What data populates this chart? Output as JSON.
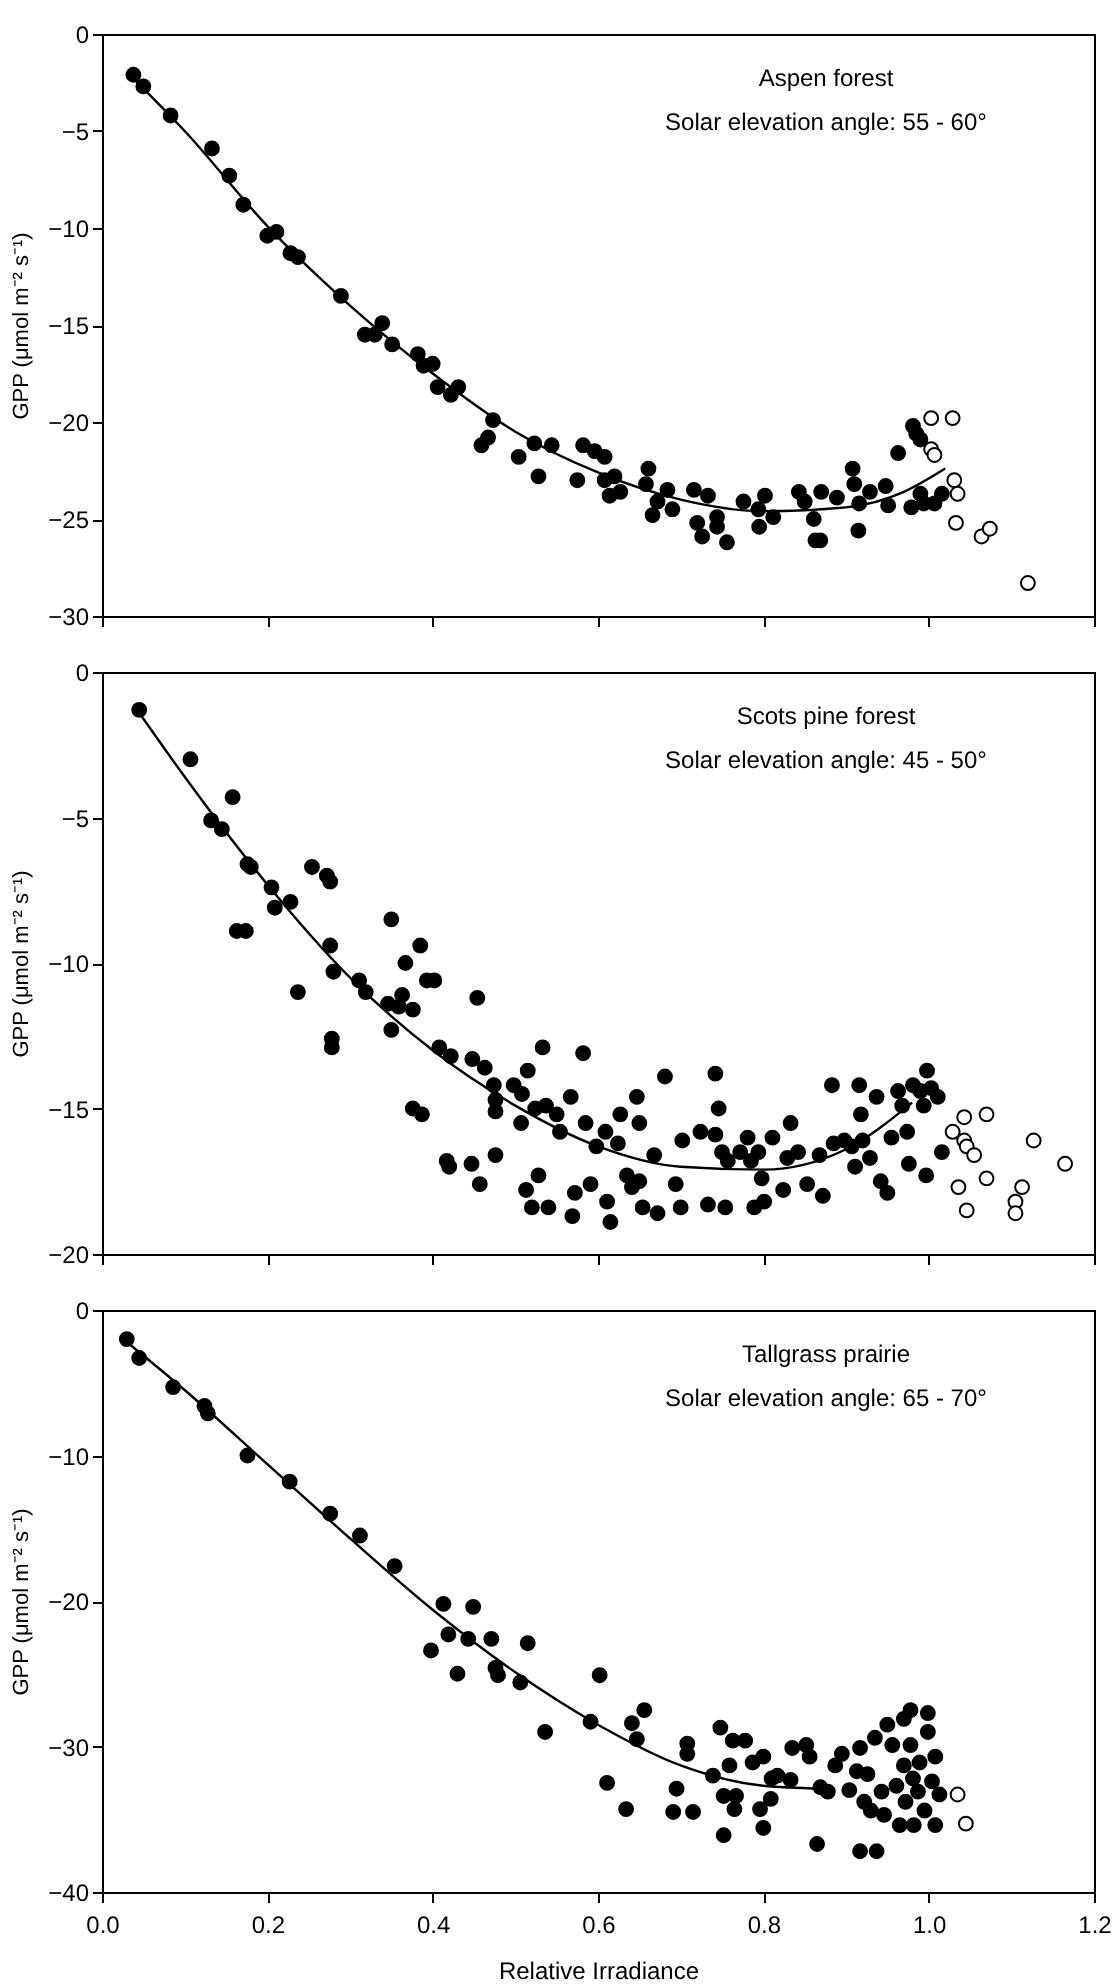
{
  "chart_data": [
    {
      "type": "scatter",
      "ylabel": "GPP (μmol m⁻² s⁻¹)",
      "annotations": [
        "Aspen forest",
        "Solar elevation angle: 55 - 60°"
      ],
      "marker": "circle",
      "tick_labels": "y",
      "xlim": [
        0,
        1.2
      ],
      "xticks": [
        0,
        0.2,
        0.4,
        0.6,
        0.8,
        1,
        1.2
      ],
      "ylim": [
        -30,
        0
      ],
      "yticks": [
        -30,
        -25,
        -20,
        -15,
        -10,
        -5,
        0
      ],
      "series": [
        {
          "type": "scatter",
          "color": "#000000",
          "x": [
            0.038,
            0.05,
            0.083,
            0.133,
            0.154,
            0.171,
            0.2,
            0.211,
            0.228,
            0.237,
            0.289,
            0.318,
            0.33,
            0.339,
            0.351,
            0.382,
            0.389,
            0.4,
            0.406,
            0.422,
            0.431,
            0.473,
            0.459,
            0.467,
            0.504,
            0.528,
            0.523,
            0.544,
            0.575,
            0.582,
            0.596,
            0.608,
            0.608,
            0.62,
            0.614,
            0.627,
            0.661,
            0.658,
            0.666,
            0.672,
            0.684,
            0.69,
            0.716,
            0.733,
            0.72,
            0.726,
            0.744,
            0.744,
            0.756,
            0.776,
            0.794,
            0.802,
            0.795,
            0.812,
            0.843,
            0.85,
            0.87,
            0.861,
            0.863,
            0.869,
            0.889,
            0.908,
            0.91,
            0.916,
            0.915,
            0.929,
            0.948,
            0.951,
            0.963,
            0.981,
            0.985,
            0.99,
            0.979,
            0.99,
            0.994,
            1.007,
            1.016
          ],
          "values": [
            -2.1,
            -2.7,
            -4.2,
            -5.9,
            -7.3,
            -8.8,
            -10.4,
            -10.2,
            -11.3,
            -11.5,
            -13.5,
            -15.5,
            -15.5,
            -14.9,
            -16,
            -16.5,
            -17.1,
            -17,
            -18.2,
            -18.6,
            -18.2,
            -19.9,
            -21.2,
            -20.8,
            -21.8,
            -22.8,
            -21.1,
            -21.2,
            -23,
            -21.2,
            -21.5,
            -21.8,
            -23,
            -22.8,
            -23.8,
            -23.6,
            -22.4,
            -23.2,
            -24.8,
            -24.1,
            -23.5,
            -24.5,
            -23.5,
            -23.8,
            -25.2,
            -25.9,
            -24.9,
            -25.4,
            -26.2,
            -24.1,
            -24.5,
            -23.8,
            -25.4,
            -24.9,
            -23.6,
            -24.1,
            -23.6,
            -25,
            -26.1,
            -26.1,
            -23.9,
            -22.4,
            -23.2,
            -24.2,
            -25.6,
            -23.6,
            -23.3,
            -24.3,
            -21.6,
            -20.2,
            -20.6,
            -20.9,
            -24.4,
            -23.7,
            -24.2,
            -24.2,
            -23.7
          ]
        },
        {
          "type": "scatter",
          "color": "#ffffff",
          "x": [
            1.003,
            1.003,
            1.007,
            1.029,
            1.031,
            1.035,
            1.033,
            1.064,
            1.074,
            1.12
          ],
          "values": [
            -19.8,
            -21.4,
            -21.7,
            -19.8,
            -23,
            -23.7,
            -25.2,
            -25.9,
            -25.5,
            -28.3
          ]
        },
        {
          "type": "line",
          "marker": "none",
          "color": "#000000",
          "x": [
            0.038,
            0.1,
            0.2,
            0.3,
            0.4,
            0.5,
            0.6,
            0.7,
            0.8,
            0.9,
            0.97,
            1.02
          ],
          "values": [
            -2.3,
            -5,
            -9.9,
            -14,
            -17.5,
            -20.5,
            -22.6,
            -24,
            -24.6,
            -24.4,
            -23.6,
            -22.4
          ]
        }
      ]
    },
    {
      "type": "scatter",
      "ylabel": "GPP (μmol m⁻² s⁻¹)",
      "annotations": [
        "Scots pine forest",
        "Solar elevation angle: 45 - 50°"
      ],
      "marker": "circle",
      "tick_labels": "y",
      "xlim": [
        0,
        1.2
      ],
      "xticks": [
        0,
        0.2,
        0.4,
        0.6,
        0.8,
        1,
        1.2
      ],
      "ylim": [
        -20,
        0
      ],
      "yticks": [
        -20,
        -15,
        -10,
        -5,
        0
      ],
      "series": [
        {
          "type": "scatter",
          "color": "#000000",
          "x": [
            0.045,
            0.107,
            0.132,
            0.145,
            0.158,
            0.163,
            0.174,
            0.176,
            0.18,
            0.205,
            0.209,
            0.228,
            0.237,
            0.254,
            0.272,
            0.276,
            0.276,
            0.28,
            0.278,
            0.278,
            0.311,
            0.319,
            0.346,
            0.35,
            0.35,
            0.359,
            0.363,
            0.367,
            0.376,
            0.385,
            0.393,
            0.402,
            0.376,
            0.387,
            0.408,
            0.417,
            0.42,
            0.422,
            0.448,
            0.447,
            0.454,
            0.457,
            0.463,
            0.474,
            0.476,
            0.476,
            0.476,
            0.498,
            0.507,
            0.508,
            0.515,
            0.513,
            0.52,
            0.524,
            0.528,
            0.533,
            0.537,
            0.54,
            0.55,
            0.554,
            0.567,
            0.572,
            0.569,
            0.582,
            0.585,
            0.591,
            0.598,
            0.609,
            0.611,
            0.615,
            0.624,
            0.627,
            0.635,
            0.641,
            0.647,
            0.65,
            0.65,
            0.654,
            0.668,
            0.672,
            0.681,
            0.694,
            0.7,
            0.702,
            0.724,
            0.733,
            0.742,
            0.746,
            0.742,
            0.75,
            0.757,
            0.754,
            0.772,
            0.781,
            0.785,
            0.789,
            0.794,
            0.798,
            0.801,
            0.811,
            0.824,
            0.829,
            0.833,
            0.842,
            0.853,
            0.868,
            0.872,
            0.883,
            0.885,
            0.898,
            0.907,
            0.911,
            0.916,
            0.918,
            0.92,
            0.929,
            0.937,
            0.942,
            0.95,
            0.955,
            0.963,
            0.968,
            0.974,
            0.976,
            0.981,
            0.99,
            0.998,
            0.994,
            1.003,
            0.997,
            1.011,
            1.016
          ],
          "values": [
            -1.3,
            -3,
            -5.1,
            -5.4,
            -4.3,
            -8.9,
            -8.9,
            -6.6,
            -6.7,
            -7.4,
            -8.1,
            -7.9,
            -11,
            -6.7,
            -7,
            -7.2,
            -9.4,
            -10.3,
            -12.6,
            -12.9,
            -10.6,
            -11,
            -11.4,
            -12.3,
            -8.5,
            -11.5,
            -11.1,
            -10,
            -11.6,
            -9.4,
            -10.6,
            -10.6,
            -15,
            -15.2,
            -12.9,
            -16.8,
            -17,
            -13.2,
            -13.3,
            -16.9,
            -11.2,
            -17.6,
            -13.6,
            -14.2,
            -16.6,
            -15.1,
            -14.7,
            -14.2,
            -15.5,
            -14.5,
            -13.7,
            -17.8,
            -18.4,
            -15,
            -17.3,
            -12.9,
            -14.9,
            -18.4,
            -15.2,
            -15.8,
            -14.6,
            -17.9,
            -18.7,
            -13.1,
            -15.5,
            -17.6,
            -16.3,
            -15.8,
            -18.2,
            -18.9,
            -16.2,
            -15.2,
            -17.3,
            -17.7,
            -14.6,
            -15.5,
            -17.5,
            -18.4,
            -16.6,
            -18.6,
            -13.9,
            -17.6,
            -18.4,
            -16.1,
            -15.8,
            -18.3,
            -13.8,
            -15,
            -15.9,
            -16.5,
            -16.8,
            -18.4,
            -16.5,
            -16,
            -16.8,
            -18.4,
            -16.5,
            -17.4,
            -18.2,
            -16,
            -17.8,
            -16.7,
            -15.5,
            -16.5,
            -17.6,
            -16.6,
            -18,
            -14.2,
            -16.2,
            -16.1,
            -16.3,
            -17,
            -14.2,
            -15.2,
            -16.1,
            -16.7,
            -14.6,
            -17.5,
            -17.9,
            -16,
            -14.4,
            -14.9,
            -15.8,
            -16.9,
            -14.2,
            -14.4,
            -13.7,
            -14.9,
            -14.3,
            -17.3,
            -14.6,
            -16.5
          ]
        },
        {
          "type": "scatter",
          "color": "#ffffff",
          "x": [
            1.029,
            1.036,
            1.043,
            1.043,
            1.046,
            1.046,
            1.055,
            1.07,
            1.07,
            1.105,
            1.105,
            1.113,
            1.127,
            1.165
          ],
          "values": [
            -15.8,
            -17.7,
            -15.3,
            -16.1,
            -16.3,
            -18.5,
            -16.6,
            -15.2,
            -17.4,
            -18.2,
            -18.6,
            -17.7,
            -16.1,
            -16.9
          ]
        },
        {
          "type": "line",
          "marker": "none",
          "color": "#000000",
          "x": [
            0.045,
            0.1,
            0.2,
            0.3,
            0.4,
            0.5,
            0.6,
            0.7,
            0.8,
            0.9,
            0.98
          ],
          "values": [
            -1.4,
            -3.6,
            -7.3,
            -10.5,
            -13,
            -14.9,
            -16.3,
            -17,
            -17.1,
            -16.4,
            -14.8
          ]
        }
      ]
    },
    {
      "type": "scatter",
      "xlabel": "Relative Irradiance",
      "ylabel": "GPP (μmol m⁻² s⁻¹)",
      "annotations": [
        "Tallgrass prairie",
        "Solar elevation angle: 65 - 70°"
      ],
      "marker": "circle",
      "xlim": [
        0,
        1.2
      ],
      "xticks": [
        {
          "value": 0,
          "label": "0.0"
        },
        0.2,
        0.4,
        0.6,
        0.8,
        {
          "value": 1,
          "label": "1.0"
        },
        1.2
      ],
      "ylim": [
        -40,
        0
      ],
      "yticks": [
        -40,
        -30,
        -20,
        -10,
        0
      ],
      "series": [
        {
          "type": "scatter",
          "color": "#000000",
          "x": [
            0.03,
            0.045,
            0.086,
            0.124,
            0.128,
            0.176,
            0.227,
            0.276,
            0.312,
            0.354,
            0.398,
            0.413,
            0.419,
            0.43,
            0.443,
            0.449,
            0.471,
            0.476,
            0.479,
            0.506,
            0.515,
            0.536,
            0.591,
            0.602,
            0.611,
            0.634,
            0.641,
            0.647,
            0.656,
            0.691,
            0.695,
            0.708,
            0.708,
            0.715,
            0.739,
            0.748,
            0.752,
            0.752,
            0.759,
            0.763,
            0.767,
            0.765,
            0.778,
            0.787,
            0.796,
            0.8,
            0.8,
            0.809,
            0.81,
            0.817,
            0.833,
            0.835,
            0.852,
            0.856,
            0.865,
            0.869,
            0.878,
            0.887,
            0.895,
            0.904,
            0.913,
            0.917,
            0.917,
            0.922,
            0.926,
            0.93,
            0.935,
            0.937,
            0.943,
            0.946,
            0.95,
            0.956,
            0.961,
            0.965,
            0.97,
            0.97,
            0.972,
            0.978,
            0.978,
            0.981,
            0.982,
            0.987,
            0.989,
            0.995,
            0.999,
            0.999,
            1.004,
            1.008,
            1.008,
            1.013
          ],
          "values": [
            -2,
            -3.3,
            -5.3,
            -6.6,
            -7.1,
            -10,
            -11.8,
            -14,
            -15.5,
            -17.6,
            -23.4,
            -20.2,
            -22.3,
            -25,
            -22.6,
            -20.4,
            -22.6,
            -24.6,
            -25.1,
            -25.6,
            -22.9,
            -29,
            -28.3,
            -25.1,
            -32.5,
            -34.3,
            -28.4,
            -29.5,
            -27.5,
            -34.5,
            -32.9,
            -29.8,
            -30.5,
            -34.5,
            -32,
            -28.7,
            -36.1,
            -33.4,
            -31.3,
            -29.6,
            -33.4,
            -34.3,
            -29.6,
            -31.1,
            -34.3,
            -30.7,
            -35.6,
            -33.6,
            -32.2,
            -32,
            -32.3,
            -30.1,
            -29.9,
            -30.7,
            -36.7,
            -32.8,
            -33.1,
            -31.3,
            -30.5,
            -33,
            -31.7,
            -37.2,
            -30.1,
            -33.8,
            -31.9,
            -34.4,
            -29.4,
            -37.2,
            -33.1,
            -34.7,
            -28.5,
            -29.9,
            -32.7,
            -35.4,
            -28.1,
            -31.3,
            -33.8,
            -27.5,
            -29.9,
            -32.2,
            -35.4,
            -33.1,
            -31.1,
            -34.4,
            -27.7,
            -29,
            -32.4,
            -30.7,
            -35.4,
            -33.3
          ]
        },
        {
          "type": "scatter",
          "color": "#ffffff",
          "x": [
            1.035,
            1.045
          ],
          "values": [
            -33.3,
            -35.3
          ]
        },
        {
          "type": "line",
          "marker": "none",
          "color": "#000000",
          "x": [
            0.03,
            0.1,
            0.2,
            0.3,
            0.4,
            0.5,
            0.6,
            0.7,
            0.8,
            0.87
          ],
          "values": [
            -2.2,
            -5.5,
            -10.6,
            -15.7,
            -20.6,
            -24.9,
            -28.5,
            -31.3,
            -32.7,
            -32.9
          ]
        }
      ]
    }
  ]
}
